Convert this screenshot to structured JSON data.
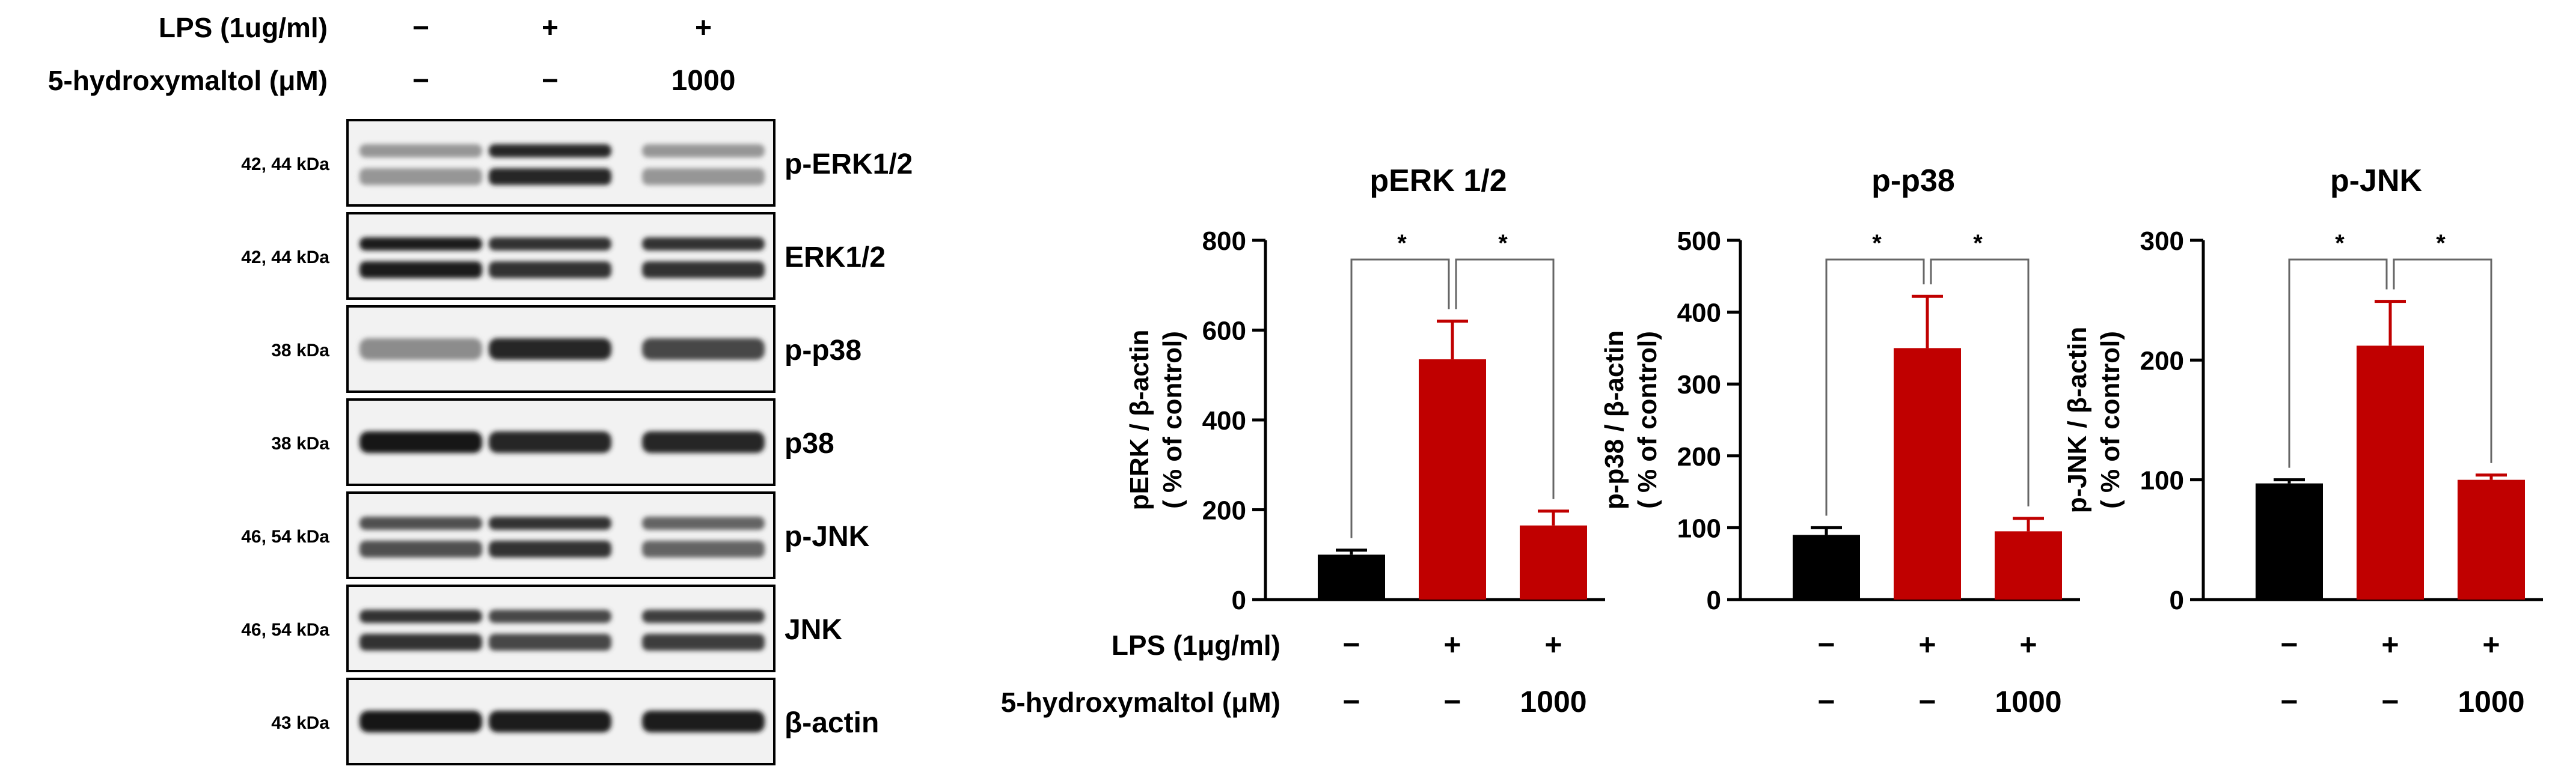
{
  "western_blot": {
    "treatment_rows": [
      {
        "label": "LPS (1ug/ml)",
        "values": [
          "−",
          "+",
          "+"
        ]
      },
      {
        "label": "5-hydroxymaltol (μM)",
        "values": [
          "−",
          "−",
          "1000"
        ]
      }
    ],
    "blots": [
      {
        "size": "42, 44 kDa",
        "protein": "p-ERK1/2",
        "style": "double",
        "intensity": [
          0.3,
          0.85,
          0.3
        ]
      },
      {
        "size": "42, 44 kDa",
        "protein": "ERK1/2",
        "style": "double",
        "intensity": [
          0.9,
          0.8,
          0.8
        ]
      },
      {
        "size": "38 kDa",
        "protein": "p-p38",
        "style": "single",
        "intensity": [
          0.35,
          0.85,
          0.7
        ]
      },
      {
        "size": "38 kDa",
        "protein": "p38",
        "style": "single",
        "intensity": [
          0.95,
          0.85,
          0.85
        ]
      },
      {
        "size": "46, 54 kDa",
        "protein": "p-JNK",
        "style": "double",
        "intensity": [
          0.65,
          0.8,
          0.55
        ]
      },
      {
        "size": "46, 54 kDa",
        "protein": "JNK",
        "style": "double",
        "intensity": [
          0.8,
          0.7,
          0.75
        ]
      },
      {
        "size": "43 kDa",
        "protein": "β-actin",
        "style": "single",
        "intensity": [
          0.95,
          0.9,
          0.9
        ]
      }
    ]
  },
  "chart_treatments": [
    {
      "label": "LPS (1μg/ml)",
      "values": [
        "−",
        "+",
        "+"
      ]
    },
    {
      "label": "5-hydroxymaltol (μM)",
      "values": [
        "−",
        "−",
        "1000"
      ]
    }
  ],
  "chart_data": [
    {
      "type": "bar",
      "title": "pERK 1/2",
      "ylabel_line1": "pERK / β-actin",
      "ylabel_line2": "( % of control)",
      "ylim": [
        0,
        800
      ],
      "yticks": [
        0,
        200,
        400,
        600,
        800
      ],
      "values": [
        100,
        535,
        165
      ],
      "errors": [
        10,
        85,
        32
      ],
      "colors": [
        "#000000",
        "#c00000",
        "#c00000"
      ],
      "significance": [
        "*",
        "*"
      ]
    },
    {
      "type": "bar",
      "title": "p-p38",
      "ylabel_line1": "p-p38 / β-actin",
      "ylabel_line2": "( % of control)",
      "ylim": [
        0,
        500
      ],
      "yticks": [
        0,
        100,
        200,
        300,
        400,
        500
      ],
      "values": [
        90,
        350,
        95
      ],
      "errors": [
        10,
        72,
        18
      ],
      "colors": [
        "#000000",
        "#c00000",
        "#c00000"
      ],
      "significance": [
        "*",
        "*"
      ]
    },
    {
      "type": "bar",
      "title": "p-JNK",
      "ylabel_line1": "p-JNK / β-actin",
      "ylabel_line2": "( % of control)",
      "ylim": [
        0,
        300
      ],
      "yticks": [
        0,
        100,
        200,
        300
      ],
      "values": [
        97,
        212,
        100
      ],
      "errors": [
        3,
        37,
        4
      ],
      "colors": [
        "#000000",
        "#c00000",
        "#c00000"
      ],
      "significance": [
        "*",
        "*"
      ]
    }
  ]
}
